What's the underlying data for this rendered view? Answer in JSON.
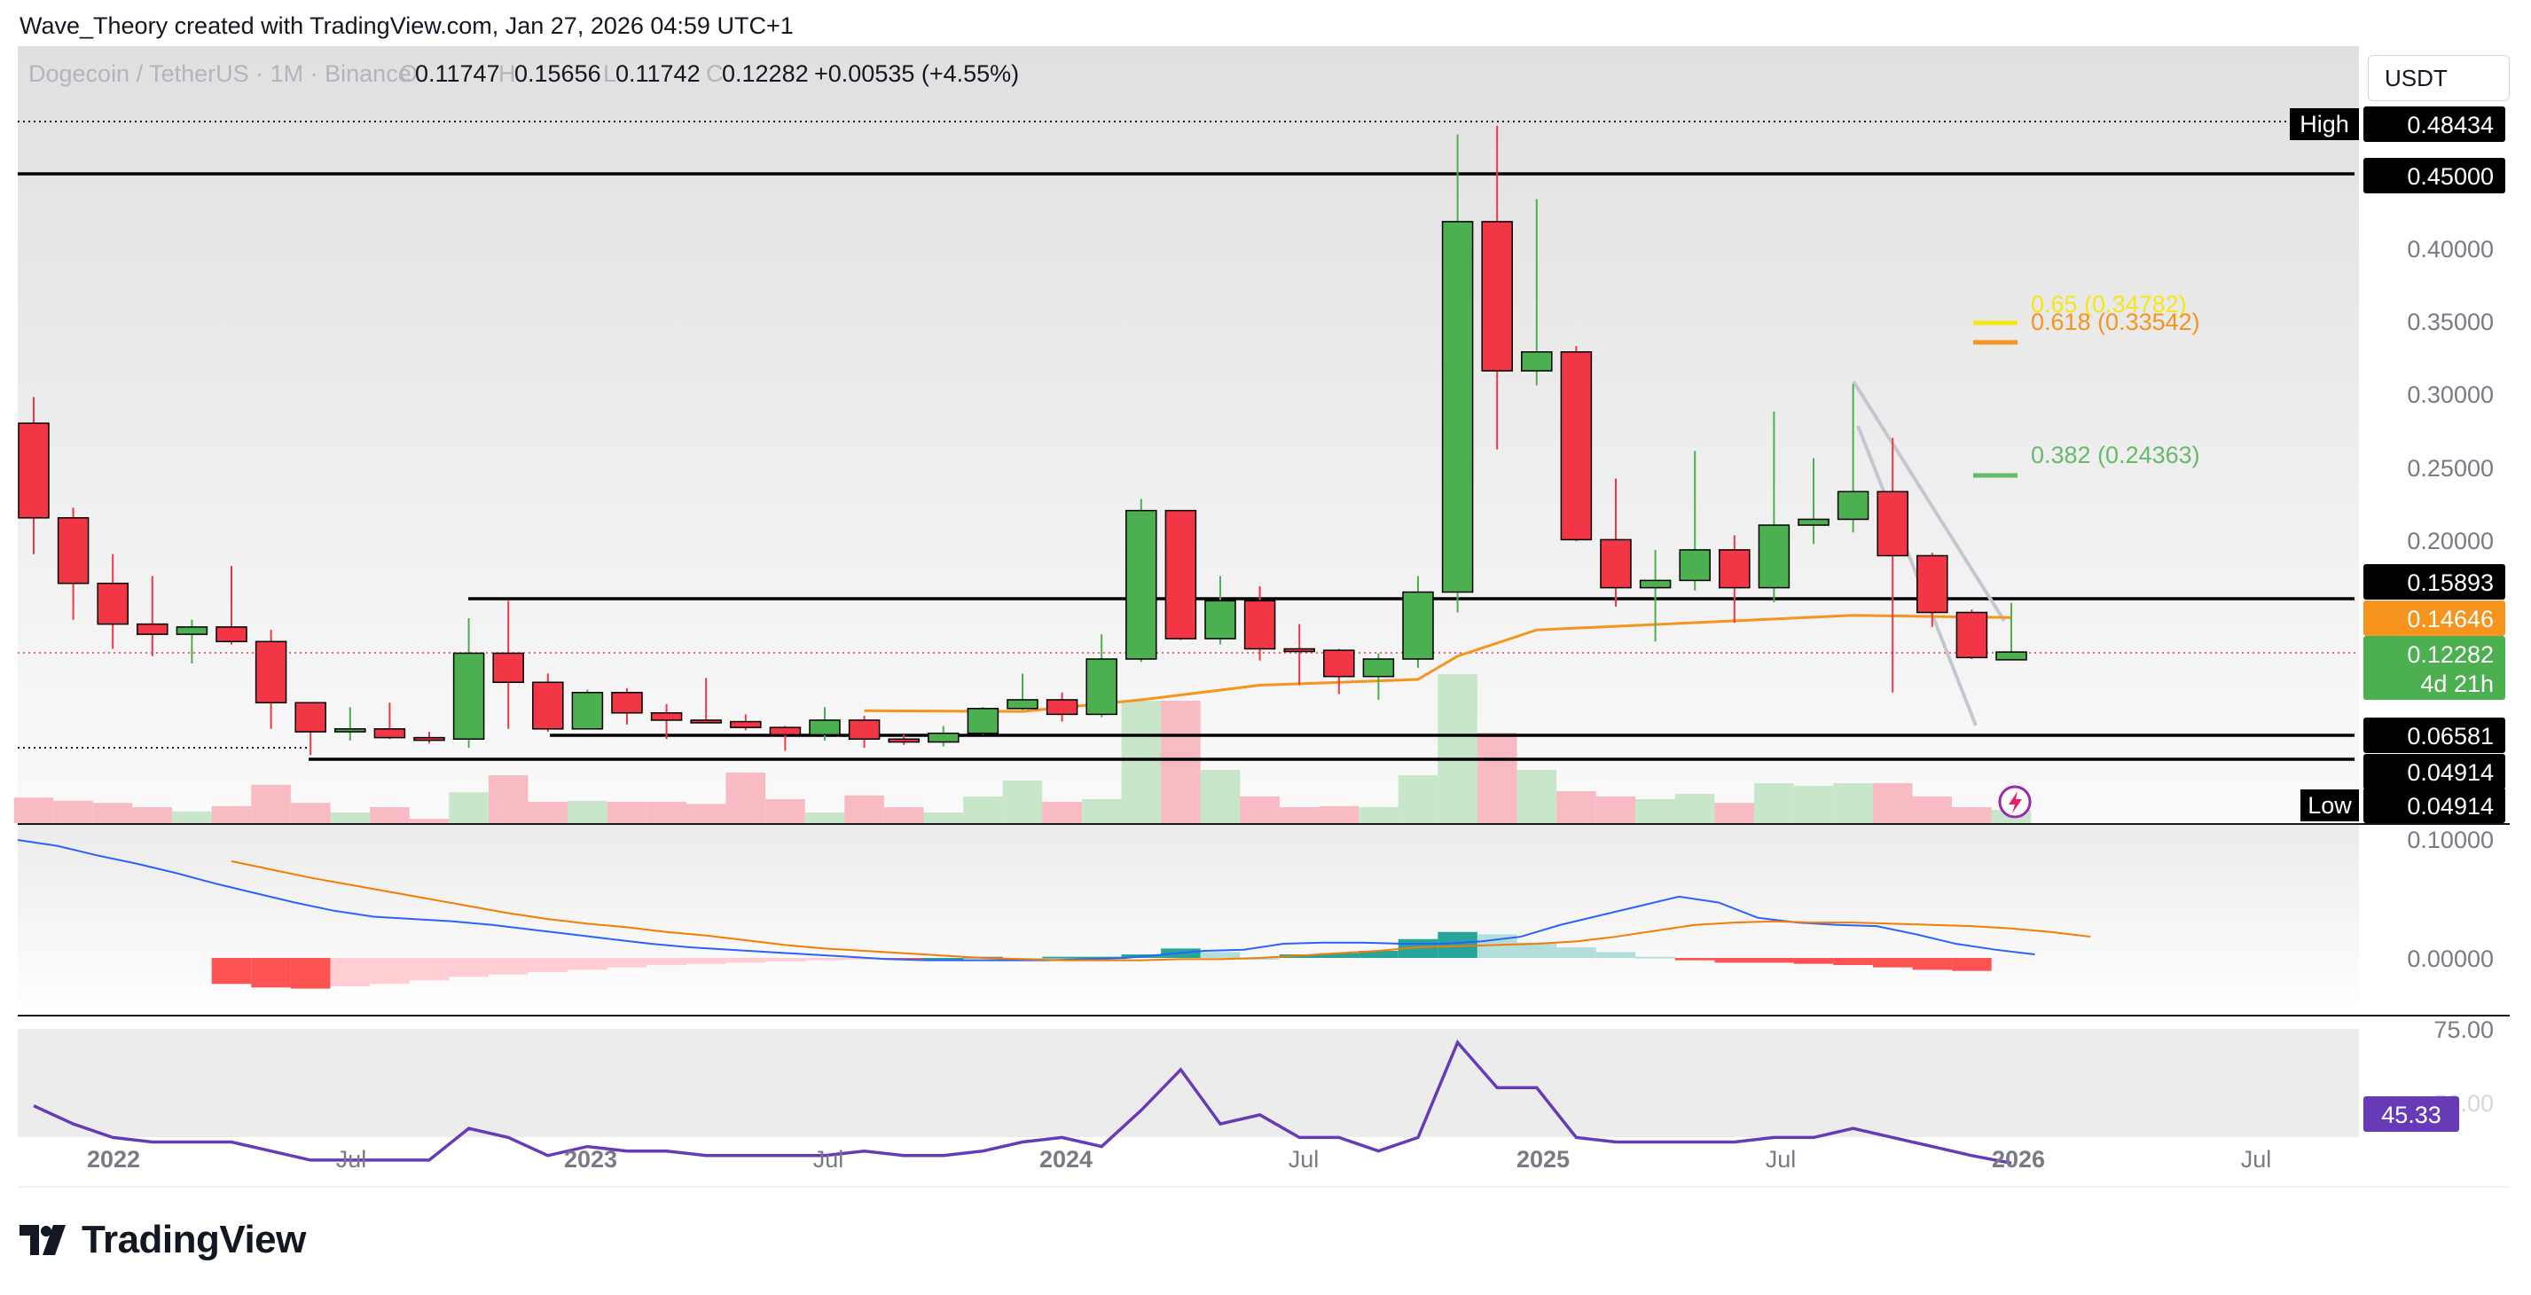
{
  "header": {
    "attribution": "Wave_Theory created with TradingView.com, Jan 27, 2026 04:59 UTC+1"
  },
  "symbol": {
    "title": "Dogecoin / TetherUS · 1M · Binance",
    "open_prefix": "O",
    "open": "0.11747",
    "high_prefix": "H",
    "high": "0.15656",
    "low_prefix": "L",
    "low": "0.11742",
    "close_prefix": "C",
    "close": "0.12282",
    "change": "+0.00535 (+4.55%)"
  },
  "currency_button": "USDT",
  "price_axis": {
    "ticks": [
      "0.40000",
      "0.35000",
      "0.30000",
      "0.25000",
      "0.20000"
    ]
  },
  "price_labels": {
    "high_label": "High",
    "high_value": "0.48434",
    "resistance": "0.45000",
    "level_1": "0.15893",
    "ema": "0.14646",
    "last": "0.12282",
    "countdown": "4d 21h",
    "level_2": "0.06581",
    "level_3": "0.04914",
    "low_label": "Low",
    "low_value": "0.04914"
  },
  "fib_labels": {
    "fib_65": "0.65 (0.34782)",
    "fib_618": "0.618 (0.33542)",
    "fib_382": "0.382 (0.24363)"
  },
  "macd_axis": {
    "ticks": [
      "0.10000",
      "0.00000"
    ]
  },
  "rsi_axis": {
    "ticks": [
      "75.00",
      "50.00"
    ],
    "value": "45.33"
  },
  "time_axis": {
    "labels": [
      "2022",
      "Jul",
      "2023",
      "Jul",
      "2024",
      "Jul",
      "2025",
      "Jul",
      "2026",
      "Jul"
    ]
  },
  "brand": {
    "name": "TradingView"
  },
  "colors": {
    "up": "#4caf50",
    "down": "#f23645",
    "ema": "#f7941d",
    "fib65": "#f5e617",
    "fib618": "#f7941d",
    "fib382": "#66bb6a",
    "macd": "#2962ff",
    "signal": "#f57c00",
    "rsi": "#673ab7"
  },
  "chart_data": {
    "type": "candlestick",
    "title": "Dogecoin / TetherUS · 1M · Binance",
    "timeframe": "1M",
    "y_unit": "USDT",
    "x_tick_labels": [
      "2022",
      "Jul",
      "2023",
      "Jul",
      "2024",
      "Jul",
      "2025",
      "Jul",
      "2026",
      "Jul"
    ],
    "candles": [
      {
        "t": "2021-11",
        "o": 0.28,
        "h": 0.298,
        "l": 0.19,
        "c": 0.215
      },
      {
        "t": "2021-12",
        "o": 0.215,
        "h": 0.222,
        "l": 0.145,
        "c": 0.17
      },
      {
        "t": "2022-01",
        "o": 0.17,
        "h": 0.19,
        "l": 0.125,
        "c": 0.142
      },
      {
        "t": "2022-02",
        "o": 0.142,
        "h": 0.175,
        "l": 0.12,
        "c": 0.135
      },
      {
        "t": "2022-03",
        "o": 0.135,
        "h": 0.145,
        "l": 0.115,
        "c": 0.14
      },
      {
        "t": "2022-04",
        "o": 0.14,
        "h": 0.182,
        "l": 0.128,
        "c": 0.13
      },
      {
        "t": "2022-05",
        "o": 0.13,
        "h": 0.138,
        "l": 0.07,
        "c": 0.088
      },
      {
        "t": "2022-06",
        "o": 0.088,
        "h": 0.088,
        "l": 0.052,
        "c": 0.068
      },
      {
        "t": "2022-07",
        "o": 0.068,
        "h": 0.085,
        "l": 0.062,
        "c": 0.07
      },
      {
        "t": "2022-08",
        "o": 0.07,
        "h": 0.088,
        "l": 0.063,
        "c": 0.064
      },
      {
        "t": "2022-09",
        "o": 0.064,
        "h": 0.068,
        "l": 0.06,
        "c": 0.063
      },
      {
        "t": "2022-10",
        "o": 0.063,
        "h": 0.146,
        "l": 0.057,
        "c": 0.122
      },
      {
        "t": "2022-11",
        "o": 0.122,
        "h": 0.158,
        "l": 0.07,
        "c": 0.102
      },
      {
        "t": "2022-12",
        "o": 0.102,
        "h": 0.108,
        "l": 0.068,
        "c": 0.07
      },
      {
        "t": "2023-01",
        "o": 0.07,
        "h": 0.097,
        "l": 0.07,
        "c": 0.095
      },
      {
        "t": "2023-02",
        "o": 0.095,
        "h": 0.098,
        "l": 0.073,
        "c": 0.081
      },
      {
        "t": "2023-03",
        "o": 0.081,
        "h": 0.087,
        "l": 0.063,
        "c": 0.076
      },
      {
        "t": "2023-04",
        "o": 0.076,
        "h": 0.105,
        "l": 0.075,
        "c": 0.075
      },
      {
        "t": "2023-05",
        "o": 0.075,
        "h": 0.08,
        "l": 0.069,
        "c": 0.071
      },
      {
        "t": "2023-06",
        "o": 0.071,
        "h": 0.072,
        "l": 0.055,
        "c": 0.066
      },
      {
        "t": "2023-07",
        "o": 0.066,
        "h": 0.085,
        "l": 0.062,
        "c": 0.076
      },
      {
        "t": "2023-08",
        "o": 0.076,
        "h": 0.079,
        "l": 0.057,
        "c": 0.063
      },
      {
        "t": "2023-09",
        "o": 0.063,
        "h": 0.066,
        "l": 0.059,
        "c": 0.061
      },
      {
        "t": "2023-10",
        "o": 0.061,
        "h": 0.072,
        "l": 0.058,
        "c": 0.067
      },
      {
        "t": "2023-11",
        "o": 0.067,
        "h": 0.085,
        "l": 0.066,
        "c": 0.084
      },
      {
        "t": "2023-12",
        "o": 0.084,
        "h": 0.108,
        "l": 0.083,
        "c": 0.09
      },
      {
        "t": "2024-01",
        "o": 0.09,
        "h": 0.095,
        "l": 0.075,
        "c": 0.08
      },
      {
        "t": "2024-02",
        "o": 0.08,
        "h": 0.135,
        "l": 0.078,
        "c": 0.118
      },
      {
        "t": "2024-03",
        "o": 0.118,
        "h": 0.228,
        "l": 0.116,
        "c": 0.22
      },
      {
        "t": "2024-04",
        "o": 0.22,
        "h": 0.22,
        "l": 0.131,
        "c": 0.132
      },
      {
        "t": "2024-05",
        "o": 0.132,
        "h": 0.175,
        "l": 0.128,
        "c": 0.158
      },
      {
        "t": "2024-06",
        "o": 0.158,
        "h": 0.168,
        "l": 0.117,
        "c": 0.125
      },
      {
        "t": "2024-07",
        "o": 0.125,
        "h": 0.142,
        "l": 0.1,
        "c": 0.124
      },
      {
        "t": "2024-08",
        "o": 0.124,
        "h": 0.125,
        "l": 0.094,
        "c": 0.106
      },
      {
        "t": "2024-09",
        "o": 0.106,
        "h": 0.122,
        "l": 0.09,
        "c": 0.118
      },
      {
        "t": "2024-10",
        "o": 0.118,
        "h": 0.175,
        "l": 0.112,
        "c": 0.164
      },
      {
        "t": "2024-11",
        "o": 0.164,
        "h": 0.4784,
        "l": 0.15,
        "c": 0.4185
      },
      {
        "t": "2024-12",
        "o": 0.4185,
        "h": 0.48434,
        "l": 0.262,
        "c": 0.316
      },
      {
        "t": "2025-01",
        "o": 0.316,
        "h": 0.434,
        "l": 0.306,
        "c": 0.329
      },
      {
        "t": "2025-02",
        "o": 0.329,
        "h": 0.333,
        "l": 0.199,
        "c": 0.2
      },
      {
        "t": "2025-03",
        "o": 0.2,
        "h": 0.242,
        "l": 0.154,
        "c": 0.167
      },
      {
        "t": "2025-04",
        "o": 0.167,
        "h": 0.193,
        "l": 0.13,
        "c": 0.172
      },
      {
        "t": "2025-05",
        "o": 0.172,
        "h": 0.261,
        "l": 0.165,
        "c": 0.193
      },
      {
        "t": "2025-06",
        "o": 0.193,
        "h": 0.203,
        "l": 0.143,
        "c": 0.167
      },
      {
        "t": "2025-07",
        "o": 0.167,
        "h": 0.288,
        "l": 0.157,
        "c": 0.21
      },
      {
        "t": "2025-08",
        "o": 0.21,
        "h": 0.256,
        "l": 0.197,
        "c": 0.214
      },
      {
        "t": "2025-09",
        "o": 0.214,
        "h": 0.307,
        "l": 0.205,
        "c": 0.233
      },
      {
        "t": "2025-10",
        "o": 0.233,
        "h": 0.27,
        "l": 0.095,
        "c": 0.189
      },
      {
        "t": "2025-11",
        "o": 0.189,
        "h": 0.191,
        "l": 0.14,
        "c": 0.15
      },
      {
        "t": "2025-12",
        "o": 0.15,
        "h": 0.152,
        "l": 0.118,
        "c": 0.119
      },
      {
        "t": "2026-01",
        "o": 0.11747,
        "h": 0.15656,
        "l": 0.11742,
        "c": 0.12282
      }
    ],
    "horizontal_levels": [
      0.45,
      0.15893,
      0.06581,
      0.04914
    ],
    "fibonacci_levels": [
      {
        "label": "0.65",
        "value": 0.34782
      },
      {
        "label": "0.618",
        "value": 0.33542
      },
      {
        "label": "0.382",
        "value": 0.24363
      }
    ],
    "ema": [
      {
        "t": "2023-08",
        "v": 0.0825
      },
      {
        "t": "2023-12",
        "v": 0.082
      },
      {
        "t": "2024-03",
        "v": 0.09
      },
      {
        "t": "2024-06",
        "v": 0.1
      },
      {
        "t": "2024-10",
        "v": 0.104
      },
      {
        "t": "2024-11",
        "v": 0.12
      },
      {
        "t": "2025-01",
        "v": 0.138
      },
      {
        "t": "2025-05",
        "v": 0.143
      },
      {
        "t": "2025-09",
        "v": 0.148
      },
      {
        "t": "2026-01",
        "v": 0.14646
      }
    ],
    "volume": [
      0.48,
      0.42,
      0.38,
      0.3,
      0.22,
      0.32,
      0.72,
      0.38,
      0.2,
      0.3,
      0.08,
      0.58,
      0.9,
      0.4,
      0.42,
      0.4,
      0.4,
      0.36,
      0.95,
      0.45,
      0.2,
      0.52,
      0.3,
      0.2,
      0.5,
      0.8,
      0.4,
      0.45,
      2.3,
      2.3,
      1.0,
      0.5,
      0.3,
      0.32,
      0.3,
      0.9,
      2.8,
      1.7,
      1.0,
      0.6,
      0.5,
      0.45,
      0.55,
      0.38,
      0.75,
      0.7,
      0.75,
      0.75,
      0.5,
      0.3,
      0.25
    ],
    "macd": {
      "ylim": [
        -0.03,
        0.105
      ],
      "axis_ticks": [
        0.1,
        0.0
      ],
      "histogram": [
        -0.022,
        -0.025,
        -0.026,
        -0.024,
        -0.022,
        -0.019,
        -0.016,
        -0.014,
        -0.012,
        -0.01,
        -0.008,
        -0.006,
        -0.005,
        -0.004,
        -0.003,
        -0.002,
        -0.001,
        -0.001,
        0.0,
        0.001,
        0.0,
        0.001,
        0.001,
        0.003,
        0.008,
        0.005,
        0.0,
        0.003,
        0.004,
        0.006,
        0.016,
        0.022,
        0.02,
        0.013,
        0.009,
        0.005,
        0.001,
        -0.002,
        -0.004,
        -0.004,
        -0.005,
        -0.006,
        -0.008,
        -0.01,
        -0.011
      ],
      "macd_line": [
        0.1,
        0.095,
        0.087,
        0.08,
        0.072,
        0.063,
        0.055,
        0.047,
        0.04,
        0.035,
        0.033,
        0.031,
        0.028,
        0.024,
        0.02,
        0.016,
        0.012,
        0.009,
        0.007,
        0.005,
        0.003,
        0.001,
        -0.001,
        -0.002,
        -0.002,
        -0.002,
        -0.002,
        -0.001,
        0.0,
        0.003,
        0.006,
        0.007,
        0.012,
        0.013,
        0.013,
        0.012,
        0.012,
        0.014,
        0.018,
        0.028,
        0.036,
        0.044,
        0.052,
        0.047,
        0.034,
        0.03,
        0.028,
        0.027,
        0.02,
        0.012,
        0.007,
        0.003
      ],
      "signal_line": [
        0.082,
        0.075,
        0.068,
        0.062,
        0.056,
        0.05,
        0.044,
        0.038,
        0.033,
        0.029,
        0.026,
        0.022,
        0.019,
        0.015,
        0.011,
        0.008,
        0.006,
        0.004,
        0.002,
        0.0,
        -0.001,
        -0.002,
        -0.002,
        -0.002,
        -0.001,
        -0.001,
        0.0,
        0.002,
        0.004,
        0.006,
        0.009,
        0.01,
        0.011,
        0.012,
        0.014,
        0.018,
        0.023,
        0.028,
        0.03,
        0.031,
        0.03,
        0.03,
        0.029,
        0.028,
        0.027,
        0.025,
        0.022,
        0.018
      ]
    },
    "rsi": {
      "ylim": [
        40,
        78
      ],
      "axis_ticks": [
        75,
        50
      ],
      "values": [
        58,
        54,
        51,
        50,
        50,
        50,
        48,
        46,
        46,
        46,
        46,
        53,
        51,
        47,
        49,
        48,
        48,
        47,
        47,
        47,
        47,
        48,
        47,
        47,
        48,
        50,
        51,
        49,
        57,
        66,
        54,
        56,
        51,
        51,
        48,
        51,
        72,
        62,
        62,
        51,
        50,
        50,
        50,
        50,
        51,
        51,
        53,
        51,
        49,
        47,
        45.33
      ]
    }
  }
}
